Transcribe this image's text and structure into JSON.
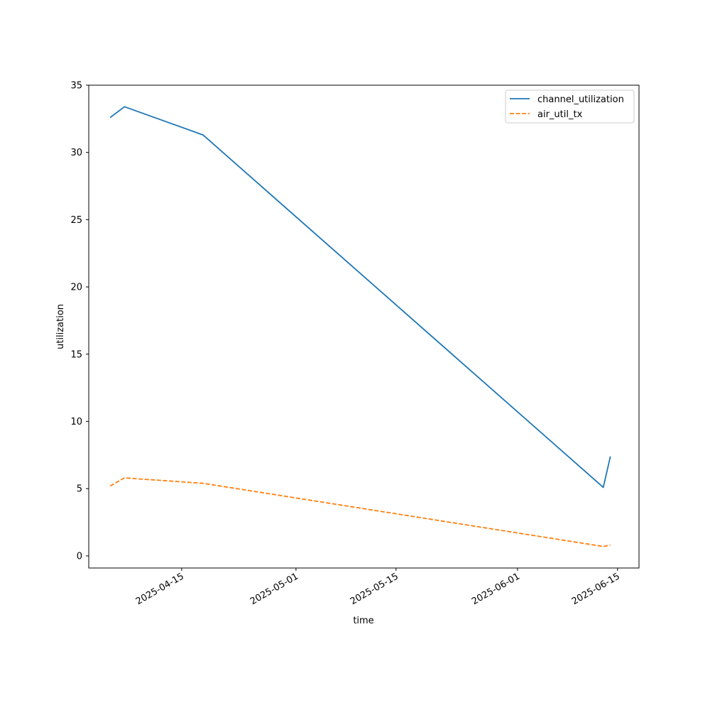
{
  "chart_data": {
    "type": "line",
    "title": "",
    "xlabel": "time",
    "ylabel": "utilization",
    "x_scale": "date",
    "xlim": [
      "2025-04-02",
      "2025-06-18"
    ],
    "ylim": [
      -0.9,
      35
    ],
    "grid": false,
    "legend_position": "top-right",
    "x_ticks": [
      "2025-04-15",
      "2025-05-01",
      "2025-05-15",
      "2025-06-01",
      "2025-06-15"
    ],
    "y_ticks": [
      0,
      5,
      10,
      15,
      20,
      25,
      30,
      35
    ],
    "series": [
      {
        "name": "channel_utilization",
        "color": "#1f77b4",
        "style": "solid",
        "points": [
          {
            "x": "2025-04-05",
            "y": 32.6
          },
          {
            "x": "2025-04-07",
            "y": 33.4
          },
          {
            "x": "2025-04-18",
            "y": 31.3
          },
          {
            "x": "2025-06-13",
            "y": 5.1
          },
          {
            "x": "2025-06-14",
            "y": 7.4
          }
        ]
      },
      {
        "name": "air_util_tx",
        "color": "#ff7f0e",
        "style": "dashed",
        "points": [
          {
            "x": "2025-04-05",
            "y": 5.2
          },
          {
            "x": "2025-04-07",
            "y": 5.8
          },
          {
            "x": "2025-04-18",
            "y": 5.4
          },
          {
            "x": "2025-06-13",
            "y": 0.7
          },
          {
            "x": "2025-06-14",
            "y": 0.8
          }
        ]
      }
    ]
  }
}
